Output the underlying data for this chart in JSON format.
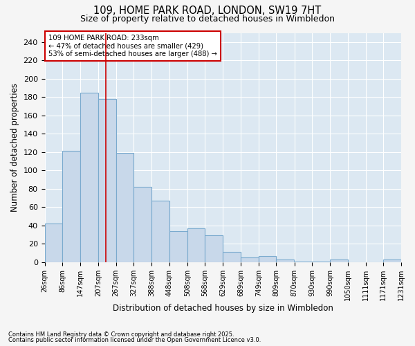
{
  "title_line1": "109, HOME PARK ROAD, LONDON, SW19 7HT",
  "title_line2": "Size of property relative to detached houses in Wimbledon",
  "xlabel": "Distribution of detached houses by size in Wimbledon",
  "ylabel": "Number of detached properties",
  "bar_left_edges": [
    26,
    86,
    147,
    207,
    267,
    327,
    388,
    448,
    508,
    568,
    629,
    689,
    749,
    809,
    870,
    930,
    990,
    1050,
    1111,
    1171
  ],
  "bar_heights": [
    42,
    121,
    185,
    178,
    119,
    82,
    67,
    34,
    37,
    29,
    11,
    5,
    7,
    3,
    1,
    1,
    3,
    0,
    0,
    3
  ],
  "bar_color": "#c8d8ea",
  "bar_edge_color": "#7aaace",
  "vline_x": 233,
  "vline_color": "#cc0000",
  "ylim": [
    0,
    250
  ],
  "yticks": [
    0,
    20,
    40,
    60,
    80,
    100,
    120,
    140,
    160,
    180,
    200,
    220,
    240
  ],
  "xtick_labels": [
    "26sqm",
    "86sqm",
    "147sqm",
    "207sqm",
    "267sqm",
    "327sqm",
    "388sqm",
    "448sqm",
    "508sqm",
    "568sqm",
    "629sqm",
    "689sqm",
    "749sqm",
    "809sqm",
    "870sqm",
    "930sqm",
    "990sqm",
    "1050sqm",
    "1111sqm",
    "1171sqm",
    "1231sqm"
  ],
  "annotation_text": "109 HOME PARK ROAD: 233sqm\n← 47% of detached houses are smaller (429)\n53% of semi-detached houses are larger (488) →",
  "annotation_box_facecolor": "#ffffff",
  "annotation_box_edgecolor": "#cc0000",
  "footnote1": "Contains HM Land Registry data © Crown copyright and database right 2025.",
  "footnote2": "Contains public sector information licensed under the Open Government Licence v3.0.",
  "fig_bg_color": "#f5f5f5",
  "plot_bg_color": "#dce8f2",
  "grid_color": "#ffffff",
  "title_fontsize": 10.5,
  "subtitle_fontsize": 9,
  "ylabel_fontsize": 8.5,
  "xlabel_fontsize": 8.5,
  "ytick_fontsize": 8,
  "xtick_fontsize": 7
}
